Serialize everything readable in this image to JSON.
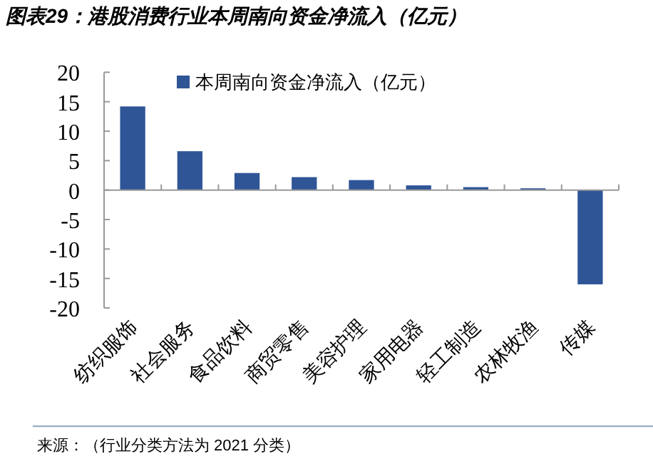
{
  "chart_data": {
    "type": "bar",
    "title": "图表29：港股消费行业本周南向资金净流入（亿元）",
    "categories": [
      "纺织服饰",
      "社会服务",
      "食品饮料",
      "商贸零售",
      "美容护理",
      "家用电器",
      "轻工制造",
      "农林牧渔",
      "传媒"
    ],
    "series": [
      {
        "name": "本周南向资金净流入（亿元）",
        "color": "#2f5597",
        "values": [
          14.2,
          6.6,
          2.9,
          2.2,
          1.7,
          0.8,
          0.5,
          0.3,
          -16.0
        ]
      }
    ],
    "ylim": [
      -20,
      20
    ],
    "yticks": [
      -20,
      -15,
      -10,
      -5,
      0,
      5,
      10,
      15,
      20
    ],
    "legend": "top",
    "annotations": [
      "来源：（行业分类方法为 2021 分类）"
    ]
  }
}
